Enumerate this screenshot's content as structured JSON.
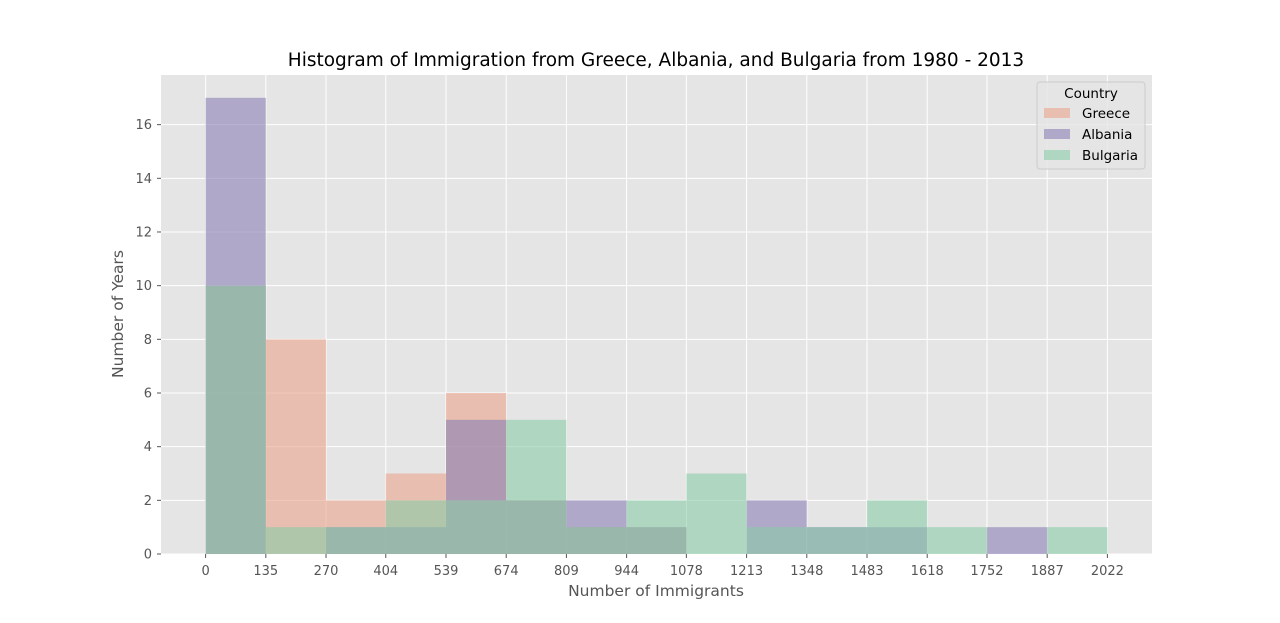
{
  "chart_data": {
    "type": "histogram",
    "title": "Histogram of Immigration from Greece, Albania, and Bulgaria from 1980 - 2013",
    "xlabel": "Number of Immigrants",
    "ylabel": "Number of Years",
    "bin_edges": [
      0,
      135,
      270,
      404,
      539,
      674,
      809,
      944,
      1078,
      1213,
      1348,
      1483,
      1618,
      1752,
      1887,
      2022
    ],
    "x_tick_labels": [
      "0",
      "135",
      "270",
      "404",
      "539",
      "674",
      "809",
      "944",
      "1078",
      "1213",
      "1348",
      "1483",
      "1618",
      "1752",
      "1887",
      "2022"
    ],
    "xlim": [
      -100,
      2122
    ],
    "ylim": [
      0,
      17.85
    ],
    "y_ticks": [
      0,
      2,
      4,
      6,
      8,
      10,
      12,
      14,
      16
    ],
    "grid": true,
    "legend": {
      "title": "Country",
      "position": "top-right"
    },
    "series": [
      {
        "name": "Greece",
        "color": "#e8a48a",
        "counts": [
          10,
          8,
          2,
          3,
          6,
          2,
          1,
          1,
          0,
          0,
          0,
          0,
          0,
          0,
          0
        ]
      },
      {
        "name": "Albania",
        "color": "#8a7fb4",
        "counts": [
          17,
          0,
          1,
          1,
          5,
          2,
          2,
          1,
          0,
          2,
          1,
          1,
          0,
          1,
          0
        ]
      },
      {
        "name": "Bulgaria",
        "color": "#8acca6",
        "counts": [
          10,
          1,
          1,
          2,
          2,
          5,
          1,
          2,
          3,
          1,
          1,
          2,
          1,
          0,
          1
        ]
      }
    ]
  }
}
